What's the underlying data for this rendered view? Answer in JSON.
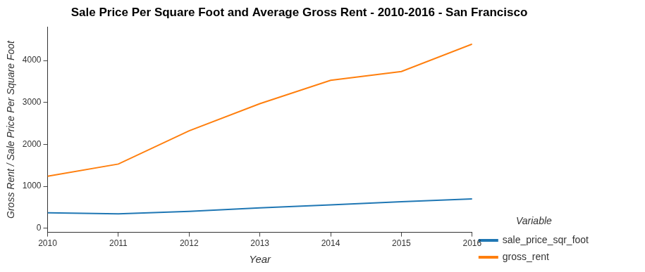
{
  "chart_data": {
    "type": "line",
    "title": "Sale Price Per Square Foot and Average Gross Rent - 2010-2016 - San Francisco",
    "x_label": "Year",
    "y_label": "Gross Rent / Sale Price Per Square Foot",
    "legend_title": "Variable",
    "x": [
      2010,
      2011,
      2012,
      2013,
      2014,
      2015,
      2016
    ],
    "series": [
      {
        "name": "sale_price_sqr_foot",
        "color": "#1f77b4",
        "values": [
          369,
          342,
          399,
          483,
          556,
          632,
          697
        ]
      },
      {
        "name": "gross_rent",
        "color": "#ff7f0e",
        "values": [
          1239,
          1530,
          2324,
          2971,
          3528,
          3739,
          4391
        ]
      }
    ],
    "xlim": [
      2010,
      2016
    ],
    "xticks": [
      2010,
      2011,
      2012,
      2013,
      2014,
      2015,
      2016
    ],
    "ylim": [
      -100,
      4800
    ],
    "yticks": [
      0,
      1000,
      2000,
      3000,
      4000
    ],
    "grid": false,
    "legend": "right"
  }
}
